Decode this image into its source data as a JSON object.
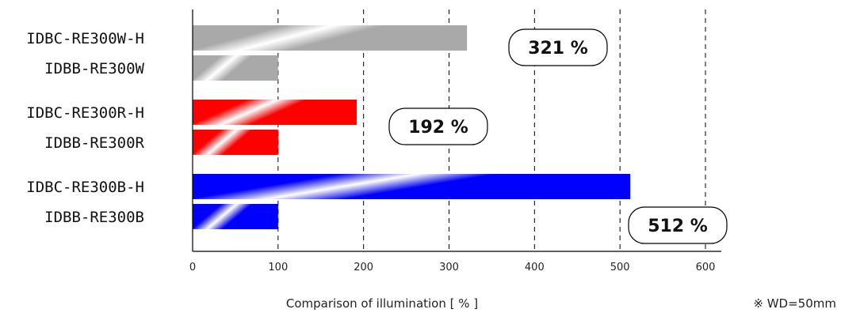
{
  "chart_data": {
    "type": "bar",
    "orientation": "horizontal",
    "xlabel": "Comparison of illumination [ % ]",
    "xlim": [
      0,
      600
    ],
    "xticks": [
      "0",
      "100",
      "200",
      "300",
      "400",
      "500",
      "600"
    ],
    "grid": "vertical-dashed",
    "note": "※ WD=50mm",
    "bars": [
      {
        "label": "IDBC-RE300W-H",
        "value": 321,
        "color": "#a9a9a9"
      },
      {
        "label": "IDBB-RE300W",
        "value": 100,
        "color": "#a9a9a9"
      },
      {
        "label": "IDBC-RE300R-H",
        "value": 192,
        "color": "#ff0000"
      },
      {
        "label": "IDBB-RE300R",
        "value": 100,
        "color": "#ff0000"
      },
      {
        "label": "IDBC-RE300B-H",
        "value": 512,
        "color": "#0000ff"
      },
      {
        "label": "IDBB-RE300B",
        "value": 100,
        "color": "#0000ff"
      }
    ],
    "callouts": [
      {
        "text": "321 %",
        "group": 0
      },
      {
        "text": "192 %",
        "group": 1
      },
      {
        "text": "512 %",
        "group": 2
      }
    ]
  }
}
